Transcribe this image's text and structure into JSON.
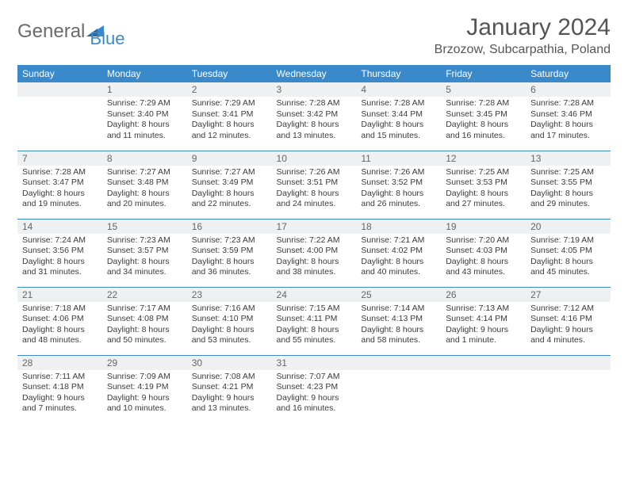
{
  "branding": {
    "logo_word1": "General",
    "logo_word2": "Blue",
    "logo_color_primary": "#3a8acb",
    "logo_color_text": "#6a6a6a"
  },
  "header": {
    "title": "January 2024",
    "location": "Brzozow, Subcarpathia, Poland"
  },
  "styling": {
    "header_bg": "#3a8acb",
    "header_text": "#ffffff",
    "daynum_bg": "#eef0f1",
    "border_color": "#3a8acb",
    "body_text": "#3a3a3a",
    "title_fontsize": 30,
    "location_fontsize": 16,
    "dayheader_fontsize": 12,
    "cell_fontsize": 10.5
  },
  "weekdays": [
    "Sunday",
    "Monday",
    "Tuesday",
    "Wednesday",
    "Thursday",
    "Friday",
    "Saturday"
  ],
  "weeks": [
    [
      {
        "day": "",
        "sunrise": "",
        "sunset": "",
        "daylight1": "",
        "daylight2": ""
      },
      {
        "day": "1",
        "sunrise": "Sunrise: 7:29 AM",
        "sunset": "Sunset: 3:40 PM",
        "daylight1": "Daylight: 8 hours",
        "daylight2": "and 11 minutes."
      },
      {
        "day": "2",
        "sunrise": "Sunrise: 7:29 AM",
        "sunset": "Sunset: 3:41 PM",
        "daylight1": "Daylight: 8 hours",
        "daylight2": "and 12 minutes."
      },
      {
        "day": "3",
        "sunrise": "Sunrise: 7:28 AM",
        "sunset": "Sunset: 3:42 PM",
        "daylight1": "Daylight: 8 hours",
        "daylight2": "and 13 minutes."
      },
      {
        "day": "4",
        "sunrise": "Sunrise: 7:28 AM",
        "sunset": "Sunset: 3:44 PM",
        "daylight1": "Daylight: 8 hours",
        "daylight2": "and 15 minutes."
      },
      {
        "day": "5",
        "sunrise": "Sunrise: 7:28 AM",
        "sunset": "Sunset: 3:45 PM",
        "daylight1": "Daylight: 8 hours",
        "daylight2": "and 16 minutes."
      },
      {
        "day": "6",
        "sunrise": "Sunrise: 7:28 AM",
        "sunset": "Sunset: 3:46 PM",
        "daylight1": "Daylight: 8 hours",
        "daylight2": "and 17 minutes."
      }
    ],
    [
      {
        "day": "7",
        "sunrise": "Sunrise: 7:28 AM",
        "sunset": "Sunset: 3:47 PM",
        "daylight1": "Daylight: 8 hours",
        "daylight2": "and 19 minutes."
      },
      {
        "day": "8",
        "sunrise": "Sunrise: 7:27 AM",
        "sunset": "Sunset: 3:48 PM",
        "daylight1": "Daylight: 8 hours",
        "daylight2": "and 20 minutes."
      },
      {
        "day": "9",
        "sunrise": "Sunrise: 7:27 AM",
        "sunset": "Sunset: 3:49 PM",
        "daylight1": "Daylight: 8 hours",
        "daylight2": "and 22 minutes."
      },
      {
        "day": "10",
        "sunrise": "Sunrise: 7:26 AM",
        "sunset": "Sunset: 3:51 PM",
        "daylight1": "Daylight: 8 hours",
        "daylight2": "and 24 minutes."
      },
      {
        "day": "11",
        "sunrise": "Sunrise: 7:26 AM",
        "sunset": "Sunset: 3:52 PM",
        "daylight1": "Daylight: 8 hours",
        "daylight2": "and 26 minutes."
      },
      {
        "day": "12",
        "sunrise": "Sunrise: 7:25 AM",
        "sunset": "Sunset: 3:53 PM",
        "daylight1": "Daylight: 8 hours",
        "daylight2": "and 27 minutes."
      },
      {
        "day": "13",
        "sunrise": "Sunrise: 7:25 AM",
        "sunset": "Sunset: 3:55 PM",
        "daylight1": "Daylight: 8 hours",
        "daylight2": "and 29 minutes."
      }
    ],
    [
      {
        "day": "14",
        "sunrise": "Sunrise: 7:24 AM",
        "sunset": "Sunset: 3:56 PM",
        "daylight1": "Daylight: 8 hours",
        "daylight2": "and 31 minutes."
      },
      {
        "day": "15",
        "sunrise": "Sunrise: 7:23 AM",
        "sunset": "Sunset: 3:57 PM",
        "daylight1": "Daylight: 8 hours",
        "daylight2": "and 34 minutes."
      },
      {
        "day": "16",
        "sunrise": "Sunrise: 7:23 AM",
        "sunset": "Sunset: 3:59 PM",
        "daylight1": "Daylight: 8 hours",
        "daylight2": "and 36 minutes."
      },
      {
        "day": "17",
        "sunrise": "Sunrise: 7:22 AM",
        "sunset": "Sunset: 4:00 PM",
        "daylight1": "Daylight: 8 hours",
        "daylight2": "and 38 minutes."
      },
      {
        "day": "18",
        "sunrise": "Sunrise: 7:21 AM",
        "sunset": "Sunset: 4:02 PM",
        "daylight1": "Daylight: 8 hours",
        "daylight2": "and 40 minutes."
      },
      {
        "day": "19",
        "sunrise": "Sunrise: 7:20 AM",
        "sunset": "Sunset: 4:03 PM",
        "daylight1": "Daylight: 8 hours",
        "daylight2": "and 43 minutes."
      },
      {
        "day": "20",
        "sunrise": "Sunrise: 7:19 AM",
        "sunset": "Sunset: 4:05 PM",
        "daylight1": "Daylight: 8 hours",
        "daylight2": "and 45 minutes."
      }
    ],
    [
      {
        "day": "21",
        "sunrise": "Sunrise: 7:18 AM",
        "sunset": "Sunset: 4:06 PM",
        "daylight1": "Daylight: 8 hours",
        "daylight2": "and 48 minutes."
      },
      {
        "day": "22",
        "sunrise": "Sunrise: 7:17 AM",
        "sunset": "Sunset: 4:08 PM",
        "daylight1": "Daylight: 8 hours",
        "daylight2": "and 50 minutes."
      },
      {
        "day": "23",
        "sunrise": "Sunrise: 7:16 AM",
        "sunset": "Sunset: 4:10 PM",
        "daylight1": "Daylight: 8 hours",
        "daylight2": "and 53 minutes."
      },
      {
        "day": "24",
        "sunrise": "Sunrise: 7:15 AM",
        "sunset": "Sunset: 4:11 PM",
        "daylight1": "Daylight: 8 hours",
        "daylight2": "and 55 minutes."
      },
      {
        "day": "25",
        "sunrise": "Sunrise: 7:14 AM",
        "sunset": "Sunset: 4:13 PM",
        "daylight1": "Daylight: 8 hours",
        "daylight2": "and 58 minutes."
      },
      {
        "day": "26",
        "sunrise": "Sunrise: 7:13 AM",
        "sunset": "Sunset: 4:14 PM",
        "daylight1": "Daylight: 9 hours",
        "daylight2": "and 1 minute."
      },
      {
        "day": "27",
        "sunrise": "Sunrise: 7:12 AM",
        "sunset": "Sunset: 4:16 PM",
        "daylight1": "Daylight: 9 hours",
        "daylight2": "and 4 minutes."
      }
    ],
    [
      {
        "day": "28",
        "sunrise": "Sunrise: 7:11 AM",
        "sunset": "Sunset: 4:18 PM",
        "daylight1": "Daylight: 9 hours",
        "daylight2": "and 7 minutes."
      },
      {
        "day": "29",
        "sunrise": "Sunrise: 7:09 AM",
        "sunset": "Sunset: 4:19 PM",
        "daylight1": "Daylight: 9 hours",
        "daylight2": "and 10 minutes."
      },
      {
        "day": "30",
        "sunrise": "Sunrise: 7:08 AM",
        "sunset": "Sunset: 4:21 PM",
        "daylight1": "Daylight: 9 hours",
        "daylight2": "and 13 minutes."
      },
      {
        "day": "31",
        "sunrise": "Sunrise: 7:07 AM",
        "sunset": "Sunset: 4:23 PM",
        "daylight1": "Daylight: 9 hours",
        "daylight2": "and 16 minutes."
      },
      {
        "day": "",
        "sunrise": "",
        "sunset": "",
        "daylight1": "",
        "daylight2": ""
      },
      {
        "day": "",
        "sunrise": "",
        "sunset": "",
        "daylight1": "",
        "daylight2": ""
      },
      {
        "day": "",
        "sunrise": "",
        "sunset": "",
        "daylight1": "",
        "daylight2": ""
      }
    ]
  ]
}
